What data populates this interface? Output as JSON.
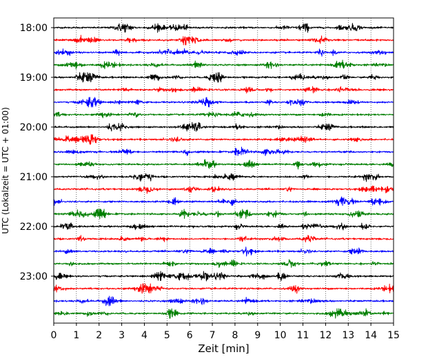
{
  "chart_data": {
    "type": "line",
    "chart_kind": "seismogram helicorder",
    "xlabel": "Zeit  [min]",
    "ylabel": "UTC (Lokalzeit = UTC + 01:00)",
    "xlim": [
      0,
      15
    ],
    "x_ticks": [
      "0",
      "1",
      "2",
      "3",
      "4",
      "5",
      "6",
      "7",
      "8",
      "9",
      "10",
      "11",
      "12",
      "13",
      "14",
      "15"
    ],
    "y_tick_labels": [
      "18:00",
      "19:00",
      "20:00",
      "21:00",
      "22:00",
      "23:00"
    ],
    "row_colors": [
      "#000000",
      "#ff0000",
      "#0000ff",
      "#007f00"
    ],
    "trace_count": 24,
    "vertical_grid": "dotted",
    "trace_start_times_utc": [
      "18:00",
      "18:15",
      "18:30",
      "18:45",
      "19:00",
      "19:15",
      "19:30",
      "19:45",
      "20:00",
      "20:15",
      "20:30",
      "20:45",
      "21:00",
      "21:15",
      "21:30",
      "21:45",
      "22:00",
      "22:15",
      "22:30",
      "22:45",
      "23:00",
      "23:15",
      "23:30",
      "23:45"
    ]
  }
}
